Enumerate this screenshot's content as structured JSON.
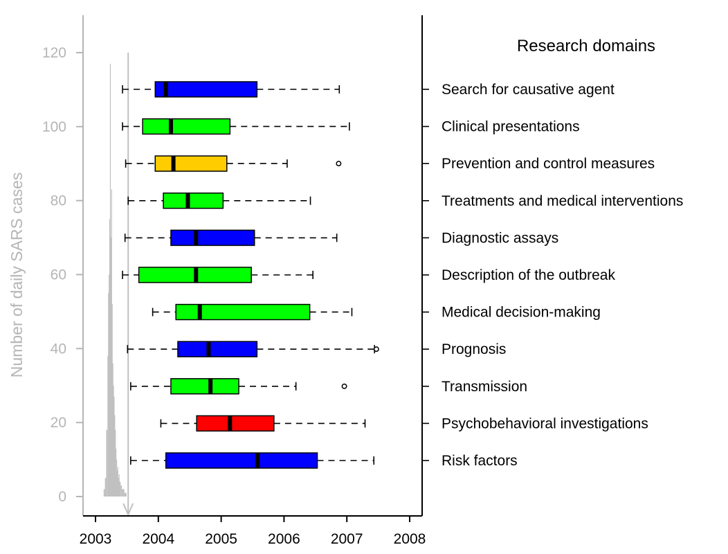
{
  "chart_data": {
    "type": "boxplot",
    "ylabel": "Number of daily SARS cases",
    "domains_title": "Research domains",
    "x_ticks": [
      "2003",
      "2004",
      "2005",
      "2006",
      "2007",
      "2008"
    ],
    "xlim": [
      2003,
      2008
    ],
    "ylim": [
      0,
      120
    ],
    "y_ticks": [
      "0",
      "20",
      "40",
      "60",
      "80",
      "100",
      "120"
    ],
    "colors": {
      "blue": "#0000ff",
      "green": "#00ff00",
      "yellow": "#ffcc00",
      "red": "#ff0000",
      "sars_histogram": "#c0c0c0",
      "secondary_axis": "#b5b5b5"
    },
    "boxes": [
      {
        "label": "Search for causative agent",
        "color": "#0000ff",
        "whisker_low": 2003.43,
        "q1": 2003.95,
        "median": 2004.12,
        "q3": 2005.57,
        "whisker_high": 2006.88,
        "outliers": []
      },
      {
        "label": "Clinical presentations",
        "color": "#00ff00",
        "whisker_low": 2003.43,
        "q1": 2003.75,
        "median": 2004.2,
        "q3": 2005.14,
        "whisker_high": 2007.04,
        "outliers": []
      },
      {
        "label": "Prevention and control measures",
        "color": "#ffcc00",
        "whisker_low": 2003.48,
        "q1": 2003.95,
        "median": 2004.24,
        "q3": 2005.09,
        "whisker_high": 2006.05,
        "outliers": [
          2006.87
        ]
      },
      {
        "label": "Treatments and medical interventions",
        "color": "#00ff00",
        "whisker_low": 2003.52,
        "q1": 2004.08,
        "median": 2004.47,
        "q3": 2005.03,
        "whisker_high": 2006.42,
        "outliers": []
      },
      {
        "label": "Diagnostic assays",
        "color": "#0000ff",
        "whisker_low": 2003.47,
        "q1": 2004.2,
        "median": 2004.6,
        "q3": 2005.53,
        "whisker_high": 2006.84,
        "outliers": []
      },
      {
        "label": "Description of the outbreak",
        "color": "#00ff00",
        "whisker_low": 2003.43,
        "q1": 2003.69,
        "median": 2004.6,
        "q3": 2005.48,
        "whisker_high": 2006.46,
        "outliers": []
      },
      {
        "label": "Medical decision-making",
        "color": "#00ff00",
        "whisker_low": 2003.91,
        "q1": 2004.28,
        "median": 2004.66,
        "q3": 2006.41,
        "whisker_high": 2007.08,
        "outliers": []
      },
      {
        "label": "Prognosis",
        "color": "#0000ff",
        "whisker_low": 2003.51,
        "q1": 2004.31,
        "median": 2004.8,
        "q3": 2005.57,
        "whisker_high": 2007.44,
        "outliers": [
          2007.47
        ]
      },
      {
        "label": "Transmission",
        "color": "#00ff00",
        "whisker_low": 2003.56,
        "q1": 2004.2,
        "median": 2004.83,
        "q3": 2005.28,
        "whisker_high": 2006.19,
        "outliers": [
          2006.96
        ]
      },
      {
        "label": "Psychobehavioral investigations",
        "color": "#ff0000",
        "whisker_low": 2004.04,
        "q1": 2004.61,
        "median": 2005.14,
        "q3": 2005.84,
        "whisker_high": 2007.29,
        "outliers": []
      },
      {
        "label": "Risk factors",
        "color": "#0000ff",
        "whisker_low": 2003.56,
        "q1": 2004.12,
        "median": 2005.58,
        "q3": 2006.53,
        "whisker_high": 2007.43,
        "outliers": []
      }
    ],
    "sars_cases": {
      "axis": "left",
      "cutoff_year": 2003.52,
      "x": [
        2003.13,
        2003.15,
        2003.17,
        2003.19,
        2003.2,
        2003.21,
        2003.22,
        2003.23,
        2003.24,
        2003.25,
        2003.26,
        2003.27,
        2003.28,
        2003.29,
        2003.3,
        2003.31,
        2003.32,
        2003.33,
        2003.34,
        2003.35,
        2003.36,
        2003.37,
        2003.38,
        2003.4,
        2003.42,
        2003.44,
        2003.46
      ],
      "y": [
        2,
        5,
        18,
        38,
        55,
        60,
        75,
        117,
        70,
        83,
        52,
        36,
        30,
        27,
        22,
        18,
        13,
        10,
        7,
        8,
        5,
        6,
        4,
        3,
        2,
        2,
        1
      ]
    }
  }
}
